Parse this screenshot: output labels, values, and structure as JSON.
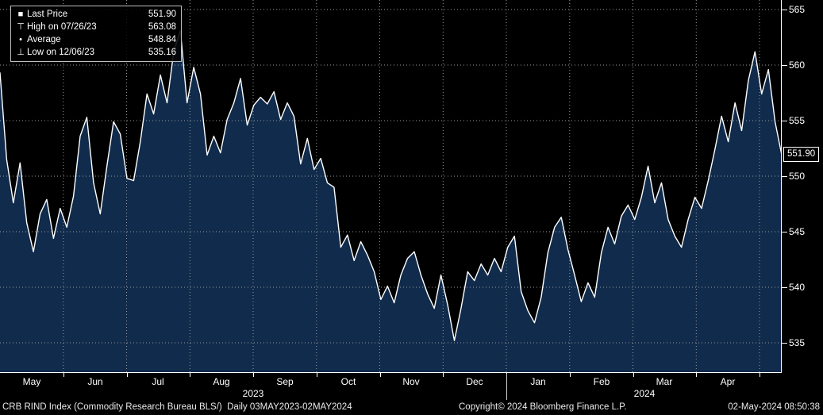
{
  "legend": {
    "rows": [
      {
        "marker": "■",
        "label": "Last Price",
        "value": "551.90"
      },
      {
        "marker": "⊤",
        "label": "High on 07/26/23",
        "value": "563.08"
      },
      {
        "marker": "•",
        "label": "Average",
        "value": "548.84"
      },
      {
        "marker": "⊥",
        "label": "Low on 12/06/23",
        "value": "535.16"
      }
    ]
  },
  "badge": {
    "last_price_label": "551.90"
  },
  "footer": {
    "left": "CRB RIND Index (Commodity Research Bureau BLS/)  Daily 03MAY2023-02MAY2024",
    "copyright": "Copyright© 2024 Bloomberg Finance L.P.",
    "datetime": "02-May-2024 08:50:38"
  },
  "chart_data": {
    "type": "line",
    "title": "CRB RIND Index Daily 03MAY2023-02MAY2024",
    "xlabel": "",
    "ylabel": "",
    "x_months": [
      "May",
      "Jun",
      "Jul",
      "Aug",
      "Sep",
      "Oct",
      "Nov",
      "Dec",
      "Jan",
      "Feb",
      "Mar",
      "Apr"
    ],
    "years": [
      "2023",
      "2024"
    ],
    "y_ticks": [
      565,
      560,
      555,
      550,
      545,
      540,
      535
    ],
    "ylim": [
      532.5,
      566
    ],
    "last_price": 551.9,
    "high": {
      "date": "07/26/23",
      "value": 563.08
    },
    "average": 548.84,
    "low": {
      "date": "12/06/23",
      "value": 535.16
    },
    "legend_position": "top-left",
    "grid": "dotted",
    "line_color": "#ffffff",
    "fill_color": "#102b4c",
    "background": "#000000",
    "grid_color": "#9b9b9b",
    "series": [
      {
        "name": "Last Price",
        "values": [
          559.3,
          551.5,
          547.6,
          551.2,
          545.8,
          543.2,
          546.6,
          547.9,
          544.4,
          547.1,
          545.4,
          548.2,
          553.6,
          555.3,
          549.4,
          546.6,
          550.9,
          554.9,
          553.8,
          549.8,
          549.6,
          553.1,
          557.4,
          555.6,
          559.1,
          556.6,
          561.2,
          563.1,
          556.6,
          559.8,
          557.4,
          551.9,
          553.6,
          552.1,
          555.1,
          556.6,
          558.8,
          554.6,
          556.4,
          557.1,
          556.5,
          557.6,
          555.1,
          556.6,
          555.4,
          551.1,
          553.4,
          550.6,
          551.6,
          549.4,
          549.0,
          543.6,
          544.7,
          542.4,
          544.1,
          542.9,
          541.4,
          538.9,
          540.1,
          538.6,
          541.1,
          542.6,
          543.2,
          541.1,
          539.4,
          538.1,
          541.1,
          538.4,
          535.2,
          538.1,
          541.4,
          540.6,
          542.1,
          541.1,
          542.6,
          541.4,
          543.6,
          544.6,
          539.6,
          537.9,
          536.8,
          539.1,
          543.1,
          545.4,
          546.3,
          543.4,
          541.1,
          538.7,
          540.4,
          539.1,
          543.1,
          545.4,
          543.9,
          546.4,
          547.4,
          546.1,
          548.1,
          550.9,
          547.6,
          549.4,
          546.1,
          544.6,
          543.6,
          546.1,
          548.1,
          547.1,
          549.6,
          552.4,
          555.4,
          553.1,
          556.6,
          554.1,
          558.6,
          561.2,
          557.4,
          559.6,
          554.9,
          551.9
        ]
      }
    ]
  }
}
